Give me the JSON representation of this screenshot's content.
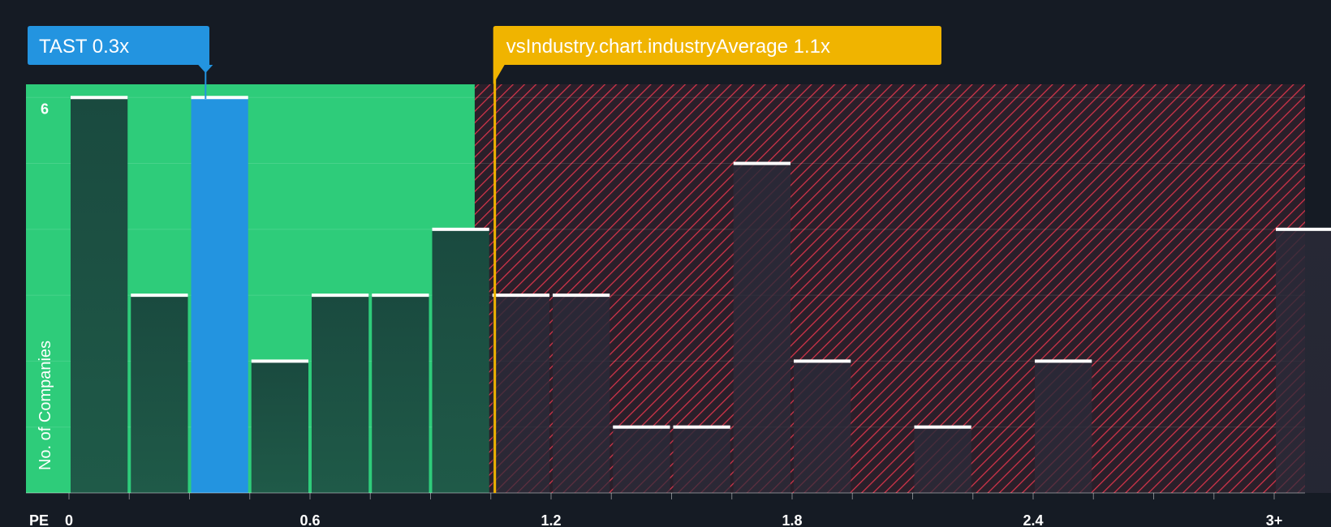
{
  "chart_data": {
    "type": "bar",
    "x_axis_label": "PE",
    "y_axis_label": "No. of Companies",
    "x_ticks": [
      "0",
      "0.6",
      "1.2",
      "1.8",
      "2.4",
      "3+"
    ],
    "y_ticks": [
      "6"
    ],
    "ylim": [
      0,
      6.2
    ],
    "bins": [
      {
        "x_start": 0.0,
        "x_end": 0.15,
        "count": 6
      },
      {
        "x_start": 0.15,
        "x_end": 0.3,
        "count": 3
      },
      {
        "x_start": 0.3,
        "x_end": 0.45,
        "count": 6,
        "highlight": true
      },
      {
        "x_start": 0.45,
        "x_end": 0.6,
        "count": 2
      },
      {
        "x_start": 0.6,
        "x_end": 0.75,
        "count": 3
      },
      {
        "x_start": 0.75,
        "x_end": 0.9,
        "count": 3
      },
      {
        "x_start": 0.9,
        "x_end": 1.05,
        "count": 4
      },
      {
        "x_start": 1.05,
        "x_end": 1.2,
        "count": 3
      },
      {
        "x_start": 1.2,
        "x_end": 1.35,
        "count": 3
      },
      {
        "x_start": 1.35,
        "x_end": 1.5,
        "count": 1
      },
      {
        "x_start": 1.5,
        "x_end": 1.65,
        "count": 1
      },
      {
        "x_start": 1.65,
        "x_end": 1.8,
        "count": 5
      },
      {
        "x_start": 1.8,
        "x_end": 1.95,
        "count": 2
      },
      {
        "x_start": 2.1,
        "x_end": 2.25,
        "count": 1
      },
      {
        "x_start": 2.4,
        "x_end": 2.55,
        "count": 2
      },
      {
        "x_start": 3.0,
        "x_end": 3.15,
        "count": 4
      }
    ],
    "company": {
      "label": "TAST 0.3x",
      "value": 0.34,
      "color": "#2394e0"
    },
    "industry_average": {
      "label": "vsIndustry.chart.industryAverage 1.1x",
      "value": 1.06,
      "color": "#f0b400"
    },
    "fair_zone_end": 1.01,
    "colors": {
      "background": "#151b24",
      "fair_zone": "#2ecc7a",
      "bar_dark": "#1c4a3e",
      "hatch_bg": "#2a1f2a",
      "hatch_line": "#d6344a",
      "bar_cap": "#ffffff"
    }
  }
}
